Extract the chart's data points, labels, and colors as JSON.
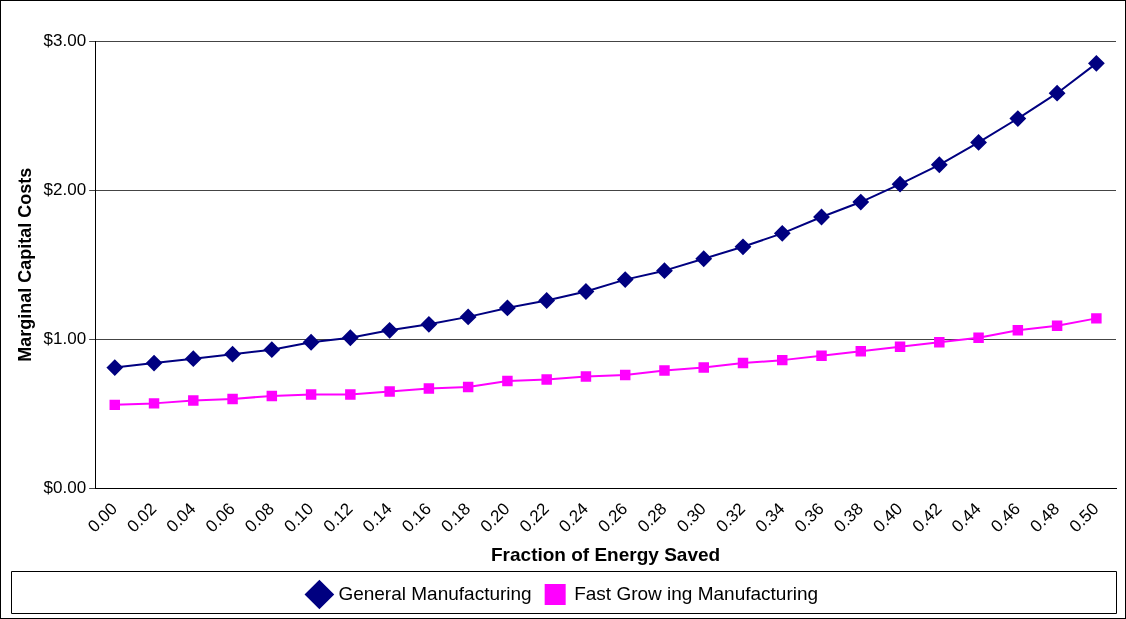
{
  "chart_data": {
    "type": "line",
    "xlabel": "Fraction of Energy Saved",
    "ylabel": "Marginal Capital Costs",
    "categories": [
      "0.00",
      "0.02",
      "0.04",
      "0.06",
      "0.08",
      "0.10",
      "0.12",
      "0.14",
      "0.16",
      "0.18",
      "0.20",
      "0.22",
      "0.24",
      "0.26",
      "0.28",
      "0.30",
      "0.32",
      "0.34",
      "0.36",
      "0.38",
      "0.40",
      "0.42",
      "0.44",
      "0.46",
      "0.48",
      "0.50"
    ],
    "series": [
      {
        "name": "General Manufacturing",
        "color": "#000080",
        "marker": "diamond",
        "values": [
          0.81,
          0.84,
          0.87,
          0.9,
          0.93,
          0.98,
          1.01,
          1.06,
          1.1,
          1.15,
          1.21,
          1.26,
          1.32,
          1.4,
          1.46,
          1.54,
          1.62,
          1.71,
          1.82,
          1.92,
          2.04,
          2.17,
          2.32,
          2.48,
          2.65,
          2.85
        ]
      },
      {
        "name": "Fast Grow ing Manufacturing",
        "color": "#ff00ff",
        "marker": "square",
        "values": [
          0.56,
          0.57,
          0.59,
          0.6,
          0.62,
          0.63,
          0.63,
          0.65,
          0.67,
          0.68,
          0.72,
          0.73,
          0.75,
          0.76,
          0.79,
          0.81,
          0.84,
          0.86,
          0.89,
          0.92,
          0.95,
          0.98,
          1.01,
          1.06,
          1.09,
          1.14
        ]
      }
    ],
    "ylim": [
      0,
      3
    ],
    "yticks": [
      {
        "value": 0,
        "label": "$0.00"
      },
      {
        "value": 1,
        "label": "$1.00"
      },
      {
        "value": 2,
        "label": "$2.00"
      },
      {
        "value": 3,
        "label": "$3.00"
      }
    ],
    "grid": "y",
    "legend": "bottom"
  }
}
